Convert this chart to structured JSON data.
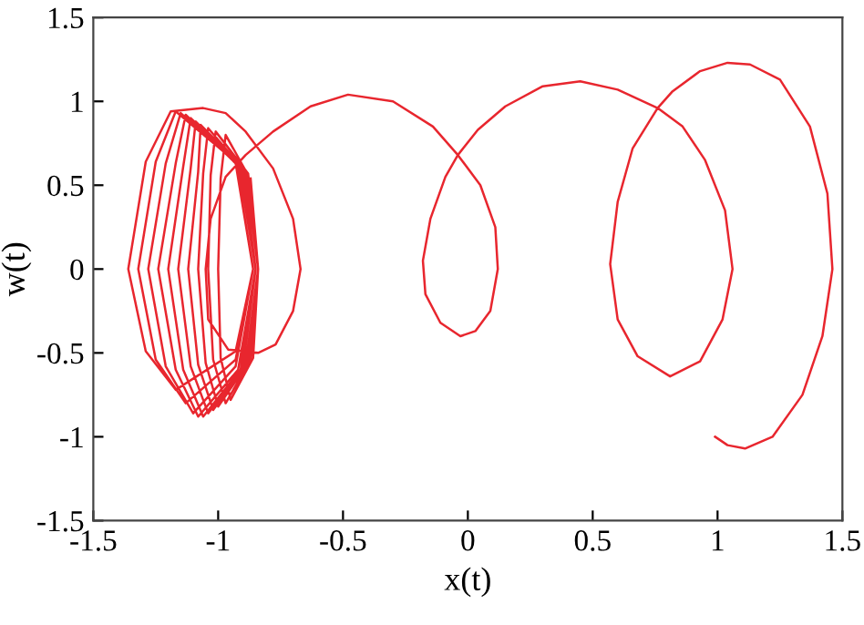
{
  "chart_data": {
    "type": "line",
    "xlabel": "x(t)",
    "ylabel": "w(t)",
    "xlim": [
      -1.5,
      1.5
    ],
    "xticks": [
      -1.5,
      -1,
      -0.5,
      0,
      0.5,
      1,
      1.5
    ],
    "ylim": [
      -1.5,
      1.5
    ],
    "yticks": [
      -1.5,
      -1,
      -0.5,
      0,
      0.5,
      1,
      1.5
    ],
    "grid": false,
    "legend": false,
    "marker": "none",
    "line_style": "solid",
    "series": [
      {
        "color": "#e8262e",
        "x": [
          0.99,
          1.04,
          1.11,
          1.22,
          1.34,
          1.42,
          1.46,
          1.44,
          1.37,
          1.25,
          1.13,
          1.04,
          0.93,
          0.82,
          0.76,
          0.66,
          0.6,
          0.57,
          0.6,
          0.68,
          0.81,
          0.93,
          1.02,
          1.06,
          1.03,
          0.95,
          0.86,
          0.76,
          0.6,
          0.45,
          0.3,
          0.15,
          0.04,
          -0.04,
          0.05,
          0.11,
          0.12,
          0.09,
          0.03,
          -0.03,
          -0.11,
          -0.17,
          -0.18,
          -0.15,
          -0.09,
          -0.04,
          -0.14,
          -0.3,
          -0.48,
          -0.63,
          -0.78,
          -0.89,
          -0.97,
          -1.03,
          -1.05,
          -1.04,
          -0.96,
          -0.84,
          -0.77,
          -0.7,
          -0.67,
          -0.7,
          -0.78,
          -0.89,
          -0.97,
          -1.06,
          -1.19,
          -1.29,
          -1.36,
          -1.29,
          -1.17,
          -0.93,
          -0.86,
          -0.93,
          -1.17,
          -1.25,
          -1.32,
          -1.25,
          -1.13,
          -0.93,
          -0.86,
          -0.93,
          -1.15,
          -1.21,
          -1.28,
          -1.21,
          -1.1,
          -0.93,
          -0.86,
          -0.93,
          -1.13,
          -1.17,
          -1.24,
          -1.17,
          -1.08,
          -0.92,
          -0.85,
          -0.92,
          -1.11,
          -1.14,
          -1.2,
          -1.14,
          -1.06,
          -0.91,
          -0.85,
          -0.91,
          -1.09,
          -1.11,
          -1.16,
          -1.11,
          -1.04,
          -0.9,
          -0.85,
          -0.9,
          -1.07,
          -1.08,
          -1.12,
          -1.08,
          -1.02,
          -0.89,
          -0.84,
          -0.89,
          -1.04,
          -1.06,
          -1.08,
          -1.05,
          -1.0,
          -0.88,
          -0.84,
          -0.88,
          -1.01,
          -1.03,
          -1.04,
          -1.02,
          -0.97,
          -0.87,
          -0.84,
          -0.88,
          -0.97,
          -0.99,
          -1.0,
          -0.99,
          -0.95,
          -0.86,
          -0.84,
          -0.87
        ],
        "values": [
          -1.0,
          -1.05,
          -1.07,
          -1.0,
          -0.75,
          -0.4,
          0.0,
          0.45,
          0.85,
          1.13,
          1.22,
          1.23,
          1.18,
          1.06,
          0.96,
          0.72,
          0.4,
          0.03,
          -0.3,
          -0.52,
          -0.64,
          -0.55,
          -0.3,
          0.0,
          0.35,
          0.65,
          0.85,
          0.96,
          1.07,
          1.12,
          1.09,
          0.97,
          0.83,
          0.68,
          0.5,
          0.25,
          0.0,
          -0.25,
          -0.37,
          -0.4,
          -0.32,
          -0.15,
          0.05,
          0.3,
          0.55,
          0.68,
          0.85,
          1.0,
          1.04,
          0.97,
          0.82,
          0.68,
          0.55,
          0.3,
          0.0,
          -0.3,
          -0.48,
          -0.5,
          -0.45,
          -0.25,
          0.0,
          0.3,
          0.6,
          0.82,
          0.93,
          0.96,
          0.94,
          0.64,
          0.0,
          -0.49,
          -0.72,
          -0.49,
          0.0,
          0.64,
          0.94,
          0.64,
          0.0,
          -0.54,
          -0.8,
          -0.54,
          0.0,
          0.64,
          0.93,
          0.63,
          0.0,
          -0.58,
          -0.86,
          -0.58,
          0.0,
          0.63,
          0.92,
          0.63,
          0.0,
          -0.6,
          -0.88,
          -0.6,
          0.0,
          0.63,
          0.9,
          0.61,
          0.0,
          -0.6,
          -0.88,
          -0.6,
          0.0,
          0.61,
          0.88,
          0.6,
          0.0,
          -0.58,
          -0.86,
          -0.58,
          0.0,
          0.6,
          0.86,
          0.58,
          0.0,
          -0.57,
          -0.84,
          -0.57,
          0.0,
          0.58,
          0.84,
          0.57,
          0.0,
          -0.56,
          -0.82,
          -0.56,
          0.0,
          0.57,
          0.82,
          0.56,
          0.0,
          -0.54,
          -0.8,
          -0.54,
          0.0,
          0.56,
          0.8,
          0.54,
          0.0,
          -0.53,
          -0.78,
          -0.53,
          0.0,
          0.54
        ]
      }
    ]
  }
}
